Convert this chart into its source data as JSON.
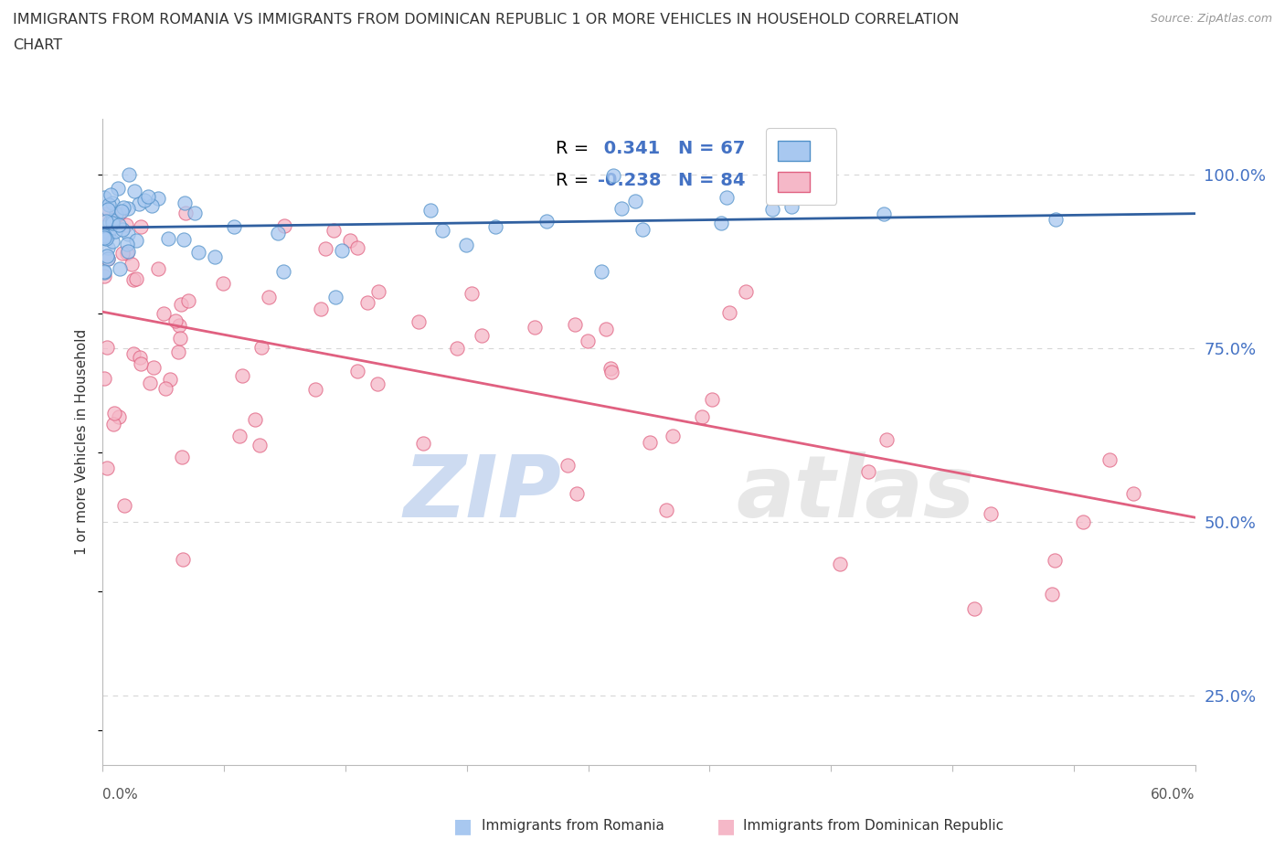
{
  "title_line1": "IMMIGRANTS FROM ROMANIA VS IMMIGRANTS FROM DOMINICAN REPUBLIC 1 OR MORE VEHICLES IN HOUSEHOLD CORRELATION",
  "title_line2": "CHART",
  "source_text": "Source: ZipAtlas.com",
  "watermark_zip": "ZIP",
  "watermark_atlas": "atlas",
  "xmin": 0.0,
  "xmax": 60.0,
  "ymin": 15.0,
  "ymax": 108.0,
  "yticks_right": [
    25.0,
    50.0,
    75.0,
    100.0
  ],
  "ytick_labels_right": [
    "25.0%",
    "50.0%",
    "75.0%",
    "100.0%"
  ],
  "color_romania": "#A8C8F0",
  "color_dominican": "#F5B8C8",
  "color_romania_edge": "#5090C8",
  "color_dominican_edge": "#E06080",
  "color_romania_line": "#3060A0",
  "color_dominican_line": "#E06080",
  "color_r_value": "#4472C4",
  "color_grid": "#CCCCCC",
  "color_watermark_zip": "#C8D8F0",
  "color_watermark_atlas": "#D8D8D8",
  "romania_seed": 42,
  "dominican_seed": 99,
  "legend_label1": "Immigrants from Romania",
  "legend_label2": "Immigrants from Dominican Republic"
}
